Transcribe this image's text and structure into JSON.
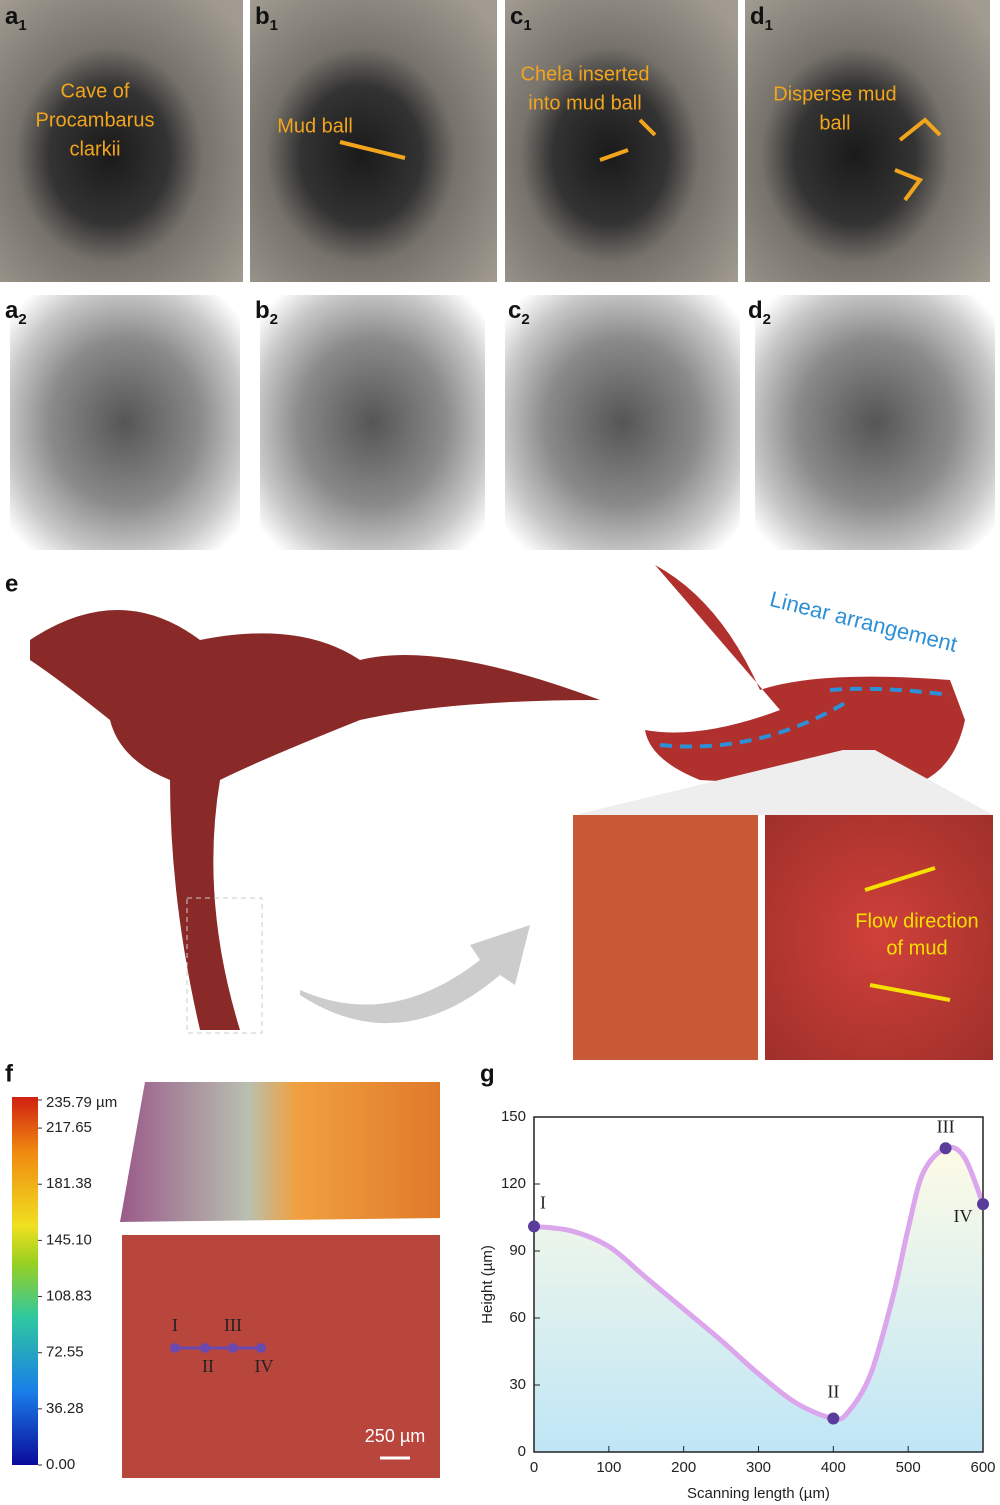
{
  "photos": [
    {
      "letter": "a",
      "sub": "1",
      "annotation": [
        "Cave of",
        "Procambarus",
        "clarkii"
      ]
    },
    {
      "letter": "b",
      "sub": "1",
      "annotation": [
        "Mud ball"
      ]
    },
    {
      "letter": "c",
      "sub": "1",
      "annotation": [
        "Chela inserted",
        "into mud ball"
      ]
    },
    {
      "letter": "d",
      "sub": "1",
      "annotation": [
        "Disperse mud",
        "ball"
      ]
    }
  ],
  "sketches": [
    {
      "letter": "a",
      "sub": "2"
    },
    {
      "letter": "b",
      "sub": "2"
    },
    {
      "letter": "c",
      "sub": "2"
    },
    {
      "letter": "d",
      "sub": "2"
    }
  ],
  "panel_e": {
    "label": "e",
    "claw_annotation": "Linear arrangement",
    "flow_annotation": [
      "Flow direction",
      "of mud"
    ]
  },
  "panel_f": {
    "label": "f",
    "colorbar": {
      "ticks": [
        {
          "value": 235.79,
          "label": "235.79 µm"
        },
        217.65,
        181.38,
        {
          "value": 145.1,
          "label": "145.10"
        },
        108.83,
        72.55,
        36.28,
        {
          "value": 0,
          "label": "0.00"
        }
      ]
    },
    "points": [
      "I",
      "II",
      "III",
      "IV"
    ],
    "scale_bar": "250 µm"
  },
  "chart_data": {
    "type": "line",
    "label": "g",
    "x_label": "Scanning length (µm)",
    "y_label": "Height (µm)",
    "x": [
      0,
      50,
      100,
      150,
      200,
      250,
      300,
      350,
      400,
      420,
      450,
      480,
      500,
      520,
      550,
      575,
      600
    ],
    "values": [
      101,
      99,
      92,
      78,
      64,
      50,
      35,
      22,
      15,
      18,
      35,
      70,
      100,
      125,
      136,
      132,
      111
    ],
    "color": "#dba6ec",
    "markers": {
      "x": [
        0,
        400,
        550,
        600
      ],
      "values": [
        101,
        15,
        136,
        111
      ],
      "labels": [
        "I",
        "II",
        "III",
        "IV"
      ],
      "color": "#5a3d9a"
    },
    "xlim": [
      0,
      600
    ],
    "ylim": [
      0,
      150
    ],
    "xticks": [
      0,
      100,
      200,
      300,
      400,
      500,
      600
    ],
    "yticks": [
      0,
      30,
      60,
      90,
      120,
      150
    ]
  }
}
